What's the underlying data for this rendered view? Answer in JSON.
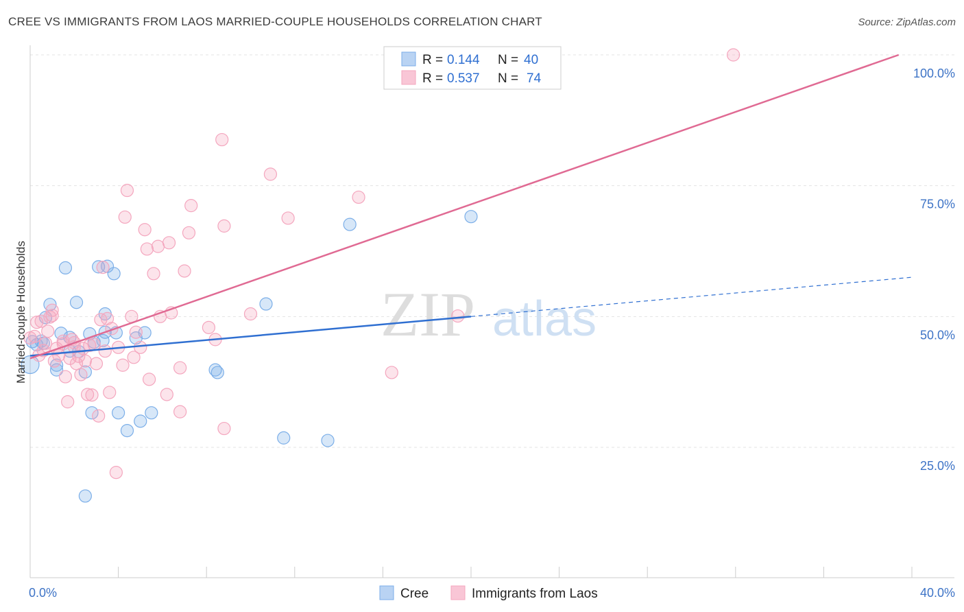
{
  "title": "CREE VS IMMIGRANTS FROM LAOS MARRIED-COUPLE HOUSEHOLDS CORRELATION CHART",
  "source": "Source: ZipAtlas.com",
  "watermark": {
    "zip": "ZIP",
    "atlas": "atlas"
  },
  "chart_data": {
    "type": "scatter",
    "title": "CREE VS IMMIGRANTS FROM LAOS MARRIED-COUPLE HOUSEHOLDS CORRELATION CHART",
    "xlabel": "",
    "ylabel": "Married-couple Households",
    "xlim": [
      0,
      40
    ],
    "ylim": [
      0,
      105
    ],
    "x_tick_labels": [
      "0.0%",
      "40.0%"
    ],
    "y_ticks": [
      25,
      50,
      75,
      100
    ],
    "y_tick_labels": [
      "25.0%",
      "50.0%",
      "75.0%",
      "100.0%"
    ],
    "grid": true,
    "legend_placement": "top-center",
    "series": [
      {
        "name": "Cree",
        "color": "#7baee8",
        "line_color": "#2f6fd1",
        "R": "0.144",
        "N": "40",
        "trend": {
          "x0": 0,
          "y0": 42.5,
          "x1": 20,
          "y1": 50.0,
          "dash_x1": 40,
          "dash_y1": 57.5
        },
        "points": [
          [
            0.0,
            40.8
          ],
          [
            0.1,
            45.2
          ],
          [
            0.3,
            44.6
          ],
          [
            0.5,
            45.3
          ],
          [
            0.7,
            49.8
          ],
          [
            0.9,
            52.3
          ],
          [
            1.2,
            39.8
          ],
          [
            1.2,
            40.7
          ],
          [
            1.4,
            46.8
          ],
          [
            1.6,
            59.3
          ],
          [
            1.8,
            43.4
          ],
          [
            2.1,
            52.7
          ],
          [
            2.2,
            43.3
          ],
          [
            2.5,
            39.4
          ],
          [
            2.7,
            46.7
          ],
          [
            2.8,
            31.6
          ],
          [
            2.9,
            45.1
          ],
          [
            3.1,
            59.5
          ],
          [
            3.4,
            47.0
          ],
          [
            3.4,
            50.5
          ],
          [
            3.5,
            59.6
          ],
          [
            3.8,
            58.2
          ],
          [
            3.9,
            46.9
          ],
          [
            4.0,
            31.6
          ],
          [
            4.4,
            28.2
          ],
          [
            4.8,
            45.9
          ],
          [
            5.0,
            30.0
          ],
          [
            5.2,
            46.9
          ],
          [
            5.5,
            31.6
          ],
          [
            8.4,
            39.8
          ],
          [
            8.5,
            39.3
          ],
          [
            10.7,
            52.4
          ],
          [
            11.5,
            26.8
          ],
          [
            13.5,
            26.3
          ],
          [
            14.5,
            67.6
          ],
          [
            20.0,
            69.1
          ],
          [
            2.5,
            15.7
          ],
          [
            0.6,
            44.9
          ],
          [
            1.8,
            46.0
          ],
          [
            3.3,
            45.4
          ]
        ]
      },
      {
        "name": "Immigrants from Laos",
        "color": "#f4a6be",
        "line_color": "#e06a93",
        "R": "0.537",
        "N": "74",
        "trend": {
          "x0": 0,
          "y0": 42.0,
          "x1": 39.4,
          "y1": 100.0
        },
        "points": [
          [
            0.0,
            45.9
          ],
          [
            0.2,
            46.2
          ],
          [
            0.3,
            48.9
          ],
          [
            0.4,
            42.6
          ],
          [
            0.5,
            49.1
          ],
          [
            0.7,
            44.9
          ],
          [
            0.8,
            47.2
          ],
          [
            1.0,
            51.2
          ],
          [
            1.0,
            50.2
          ],
          [
            1.2,
            43.9
          ],
          [
            1.3,
            42.6
          ],
          [
            1.5,
            45.3
          ],
          [
            1.6,
            38.5
          ],
          [
            1.7,
            33.7
          ],
          [
            1.8,
            42.0
          ],
          [
            1.9,
            45.6
          ],
          [
            2.0,
            44.2
          ],
          [
            2.1,
            41.0
          ],
          [
            2.2,
            42.4
          ],
          [
            2.3,
            38.9
          ],
          [
            2.4,
            43.9
          ],
          [
            2.5,
            41.5
          ],
          [
            2.6,
            35.1
          ],
          [
            2.8,
            35.0
          ],
          [
            2.9,
            44.7
          ],
          [
            3.0,
            41.0
          ],
          [
            3.1,
            31.0
          ],
          [
            3.2,
            49.4
          ],
          [
            3.3,
            59.4
          ],
          [
            3.5,
            49.6
          ],
          [
            3.6,
            35.5
          ],
          [
            3.7,
            47.7
          ],
          [
            3.9,
            20.2
          ],
          [
            4.0,
            44.1
          ],
          [
            4.2,
            40.7
          ],
          [
            4.3,
            69.0
          ],
          [
            4.4,
            74.1
          ],
          [
            4.6,
            50.0
          ],
          [
            4.7,
            42.2
          ],
          [
            4.8,
            47.0
          ],
          [
            5.0,
            44.1
          ],
          [
            5.2,
            66.6
          ],
          [
            5.3,
            62.9
          ],
          [
            5.4,
            38.0
          ],
          [
            5.6,
            58.2
          ],
          [
            5.8,
            63.4
          ],
          [
            6.2,
            35.1
          ],
          [
            6.3,
            64.1
          ],
          [
            6.4,
            50.7
          ],
          [
            6.8,
            40.2
          ],
          [
            6.8,
            31.8
          ],
          [
            7.0,
            58.7
          ],
          [
            7.2,
            66.0
          ],
          [
            7.3,
            71.2
          ],
          [
            8.1,
            47.9
          ],
          [
            8.4,
            45.6
          ],
          [
            8.7,
            83.8
          ],
          [
            8.8,
            67.3
          ],
          [
            8.8,
            28.6
          ],
          [
            10.0,
            50.5
          ],
          [
            10.9,
            77.2
          ],
          [
            11.7,
            68.8
          ],
          [
            14.9,
            72.8
          ],
          [
            16.4,
            39.3
          ],
          [
            19.4,
            50.1
          ],
          [
            31.9,
            100.0
          ],
          [
            0.9,
            49.9
          ],
          [
            1.5,
            44.8
          ],
          [
            2.7,
            44.5
          ],
          [
            3.4,
            43.4
          ],
          [
            5.9,
            50.0
          ],
          [
            2.0,
            45.0
          ],
          [
            1.1,
            41.5
          ],
          [
            0.6,
            43.5
          ]
        ]
      }
    ]
  }
}
